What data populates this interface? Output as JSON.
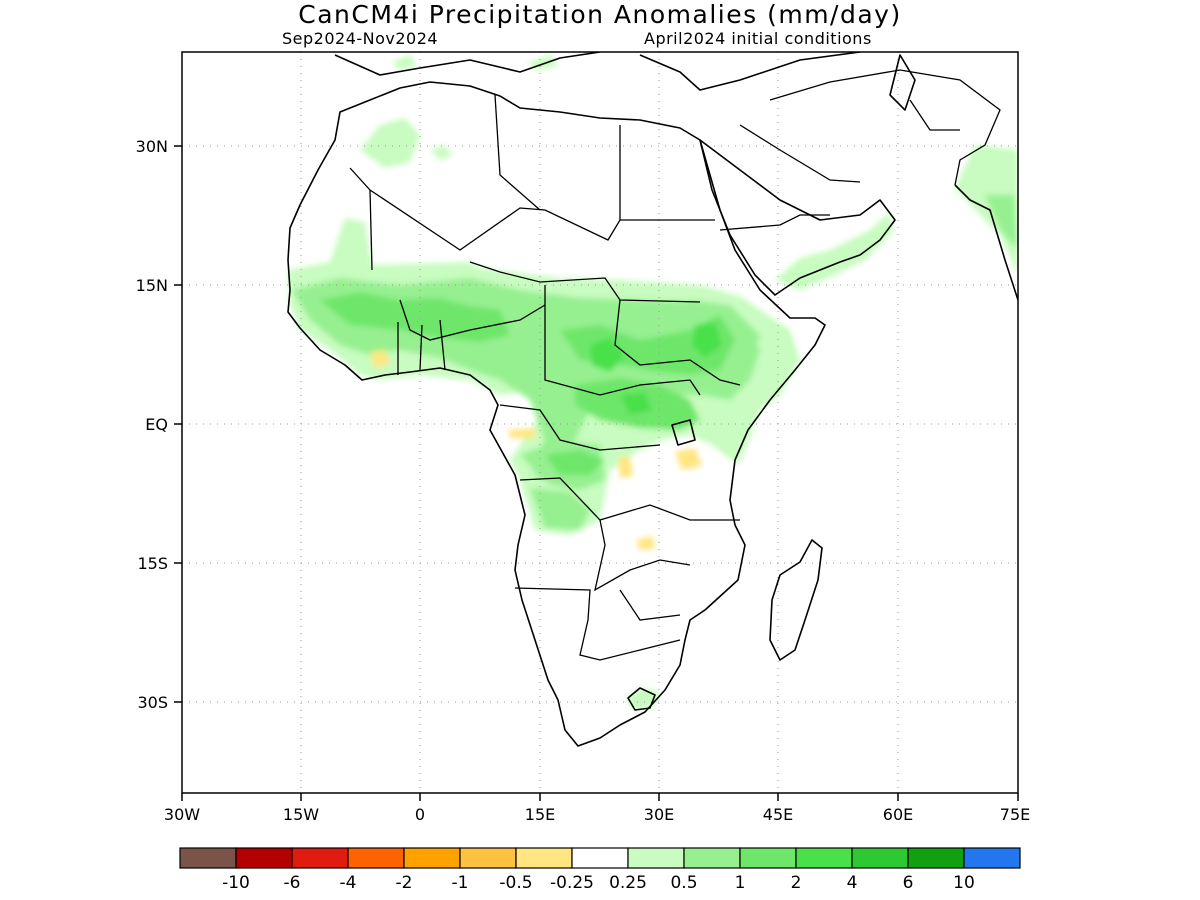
{
  "header": {
    "title": "CanCM4i Precipitation Anomalies (mm/day)",
    "period": "Sep2024-Nov2024",
    "init": "April2024 initial conditions"
  },
  "axes": {
    "x_ticks": [
      "30W",
      "15W",
      "0",
      "15E",
      "30E",
      "45E",
      "60E",
      "75E"
    ],
    "y_ticks": [
      "30N",
      "15N",
      "EQ",
      "15S",
      "30S"
    ],
    "lon_range": [
      -30,
      75
    ],
    "lat_range": [
      -41,
      37
    ]
  },
  "colorbar": {
    "colors": [
      "#7a5448",
      "#b40000",
      "#e01b0f",
      "#ff6200",
      "#ffa200",
      "#ffc140",
      "#ffe680",
      "#ffffff",
      "#c8fcc0",
      "#96f090",
      "#6ee66a",
      "#4ae04a",
      "#2ec832",
      "#10a010",
      "#2277ee"
    ],
    "labels": [
      "-10",
      "-6",
      "-4",
      "-2",
      "-1",
      "-0.5",
      "-0.25",
      "0.25",
      "0.5",
      "1",
      "2",
      "4",
      "6",
      "10"
    ]
  }
}
